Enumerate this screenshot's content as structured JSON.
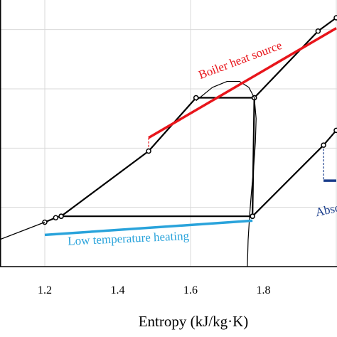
{
  "chart_data": {
    "type": "line",
    "title": "",
    "xlabel": "Entropy (kJ/kg·K)",
    "ylabel": "",
    "xlim": [
      1.0,
      2.0
    ],
    "ylim": [
      0,
      9
    ],
    "grid": true,
    "x_ticks": [
      {
        "value": 1.2,
        "label": "1.2"
      },
      {
        "value": 1.4,
        "label": "1.4"
      },
      {
        "value": 1.6,
        "label": "1.6"
      },
      {
        "value": 1.8,
        "label": "1.8"
      }
    ],
    "x_gridlines": [
      1.2,
      1.6,
      2.0
    ],
    "y_gridlines": [
      2,
      4,
      6,
      8
    ],
    "series": [
      {
        "id": "cycle-main",
        "style": "line-markers",
        "color": "#000000",
        "points": [
          [
            1.2,
            1.5
          ],
          [
            1.23,
            1.65
          ],
          [
            1.245,
            1.7
          ],
          [
            1.485,
            3.9
          ],
          [
            1.615,
            5.7
          ],
          [
            1.775,
            5.7
          ],
          [
            1.95,
            7.95
          ],
          [
            2.0,
            8.4
          ]
        ]
      },
      {
        "id": "cycle-lower",
        "style": "line-markers",
        "color": "#000000",
        "points": [
          [
            1.245,
            1.7
          ],
          [
            1.77,
            1.7
          ],
          [
            1.775,
            5.7
          ]
        ]
      },
      {
        "id": "cycle-right",
        "style": "line-markers",
        "color": "#000000",
        "points": [
          [
            1.77,
            1.7
          ],
          [
            1.965,
            4.1
          ],
          [
            2.0,
            4.6
          ]
        ]
      },
      {
        "id": "extension-left",
        "style": "line",
        "color": "#000000",
        "points": [
          [
            1.0,
            0.55
          ],
          [
            1.2,
            1.5
          ]
        ]
      },
      {
        "id": "saturation-dome",
        "style": "thin-line",
        "color": "#000000",
        "points": [
          [
            1.615,
            5.6
          ],
          [
            1.66,
            6.05
          ],
          [
            1.7,
            6.25
          ],
          [
            1.735,
            6.25
          ],
          [
            1.76,
            6.05
          ],
          [
            1.775,
            5.7
          ],
          [
            1.78,
            5.0
          ],
          [
            1.778,
            4.2
          ],
          [
            1.773,
            3.3
          ],
          [
            1.767,
            2.5
          ],
          [
            1.762,
            1.7
          ],
          [
            1.758,
            0.9
          ],
          [
            1.756,
            0.0
          ]
        ]
      },
      {
        "id": "boiler-heat-source",
        "style": "thick-line",
        "color": "#e8151b",
        "points": [
          [
            1.485,
            4.35
          ],
          [
            2.0,
            8.05
          ]
        ]
      },
      {
        "id": "low-temperature-heating",
        "style": "thick-line",
        "color": "#29a3db",
        "points": [
          [
            1.2,
            1.07
          ],
          [
            1.77,
            1.55
          ]
        ]
      },
      {
        "id": "absorber-bracket",
        "style": "thick-line",
        "color": "#1b3e8c",
        "points": [
          [
            1.965,
            2.9
          ],
          [
            2.0,
            2.9
          ]
        ]
      }
    ],
    "guides": [
      {
        "id": "boiler-drop",
        "color": "#e8151b",
        "points": [
          [
            1.485,
            4.35
          ],
          [
            1.485,
            3.9
          ]
        ]
      },
      {
        "id": "absorber-drop",
        "color": "#1b3e8c",
        "points": [
          [
            1.965,
            4.1
          ],
          [
            1.965,
            2.9
          ]
        ]
      }
    ],
    "annotations": [
      {
        "id": "boiler-label",
        "text": "Boiler heat source",
        "color": "#e8151b",
        "x": 1.74,
        "y": 6.85,
        "rotate": -20.5
      },
      {
        "id": "low-temp-label",
        "text": "Low temperature heating",
        "color": "#29a3db",
        "x": 1.43,
        "y": 0.82,
        "rotate": -2.6
      },
      {
        "id": "absorber-label",
        "text": "Absor",
        "color": "#1b3e8c",
        "x": 1.985,
        "y": 1.8,
        "rotate": -12
      }
    ]
  }
}
